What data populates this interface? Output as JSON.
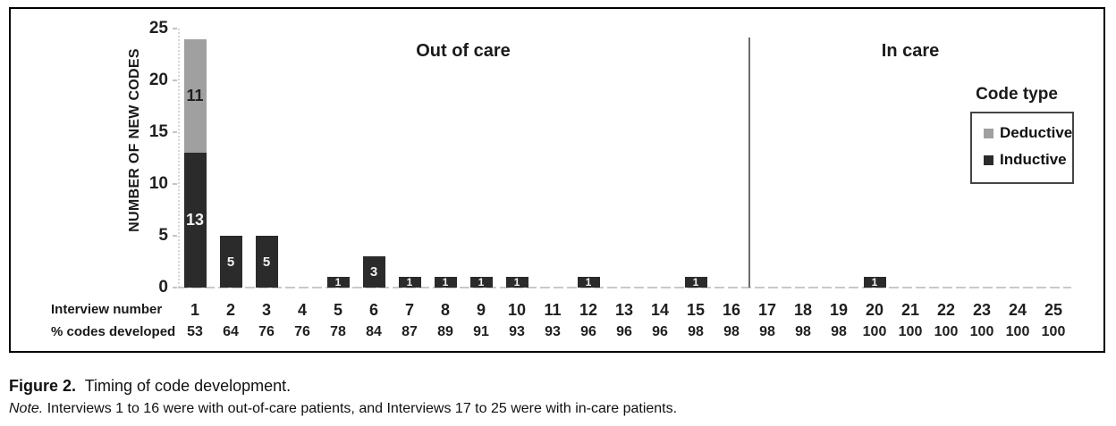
{
  "figure": {
    "caption_label": "Figure 2.",
    "caption_text": "Timing of code development.",
    "note_label": "Note.",
    "note_text": "Interviews 1 to 16 were with out-of-care patients, and Interviews 17 to 25 were with in-care patients."
  },
  "chart_data": {
    "type": "bar",
    "stacked": true,
    "title": "",
    "xlabel": "",
    "ylabel": "NUMBER OF NEW CODES",
    "ylim": [
      0,
      25
    ],
    "yticks": [
      0,
      5,
      10,
      15,
      20,
      25
    ],
    "grid": false,
    "categories": [
      "1",
      "2",
      "3",
      "4",
      "5",
      "6",
      "7",
      "8",
      "9",
      "10",
      "11",
      "12",
      "13",
      "14",
      "15",
      "16",
      "17",
      "18",
      "19",
      "20",
      "21",
      "22",
      "23",
      "24",
      "25"
    ],
    "series": [
      {
        "name": "Inductive",
        "color": "#2b2b2b",
        "label_color": "#f2f2f2",
        "values": [
          13,
          5,
          5,
          0,
          1,
          3,
          1,
          1,
          1,
          1,
          0,
          1,
          0,
          0,
          1,
          0,
          0,
          0,
          0,
          1,
          0,
          0,
          0,
          0,
          0
        ]
      },
      {
        "name": "Deductive",
        "color": "#a0a0a0",
        "label_color": "#1f1f1f",
        "values": [
          11,
          0,
          0,
          0,
          0,
          0,
          0,
          0,
          0,
          0,
          0,
          0,
          0,
          0,
          0,
          0,
          0,
          0,
          0,
          0,
          0,
          0,
          0,
          0,
          0
        ]
      }
    ],
    "row_labels": {
      "interview": "Interview number",
      "percent": "% codes developed"
    },
    "percent_values": [
      "53",
      "64",
      "76",
      "76",
      "78",
      "84",
      "87",
      "89",
      "91",
      "93",
      "93",
      "96",
      "96",
      "96",
      "98",
      "98",
      "98",
      "98",
      "98",
      "100",
      "100",
      "100",
      "100",
      "100",
      "100"
    ],
    "sections": [
      {
        "label": "Out of care",
        "range": [
          1,
          16
        ]
      },
      {
        "label": "In care",
        "range": [
          17,
          25
        ]
      }
    ],
    "divider_after_category": 16,
    "legend": {
      "title": "Code type",
      "position": "right",
      "entries": [
        {
          "label": "Deductive",
          "color": "#a0a0a0"
        },
        {
          "label": "Inductive",
          "color": "#2b2b2b"
        }
      ]
    },
    "colors": {
      "frame_border": "#000000",
      "divider": "#6b6b6b",
      "baseline_dash": "#c9c9c9"
    }
  }
}
